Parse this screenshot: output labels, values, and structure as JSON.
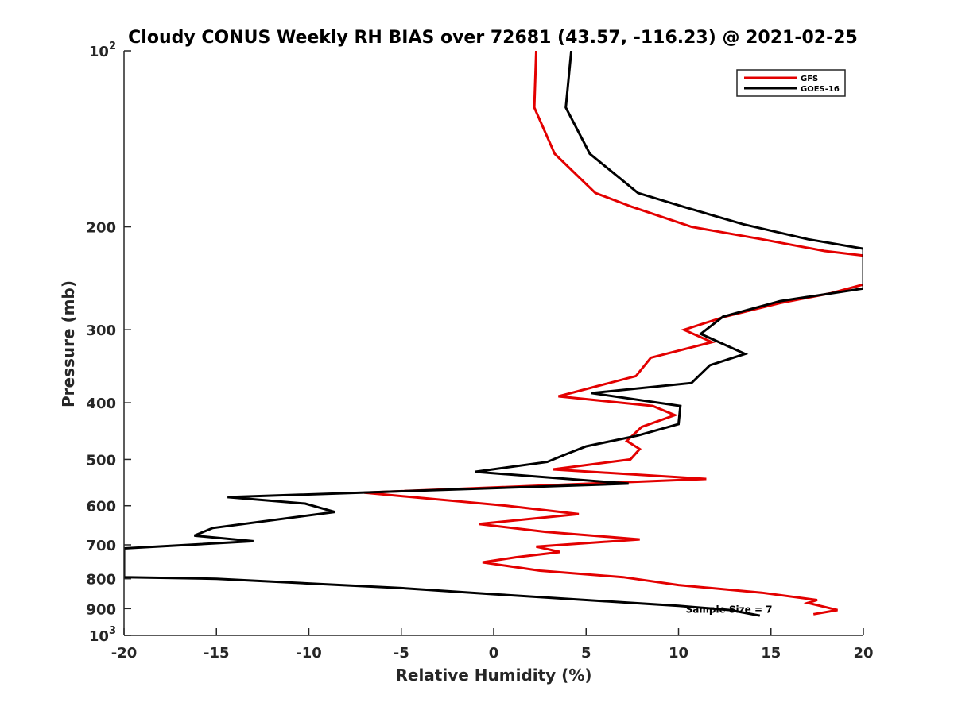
{
  "chart_data": {
    "type": "line",
    "title": "Cloudy CONUS Weekly RH BIAS over 72681 (43.57, -116.23) @ 2021-02-25",
    "xlabel": "Relative Humidity (%)",
    "ylabel": "Pressure (mb)",
    "xlim": [
      -20,
      20
    ],
    "ylim": [
      100,
      1000
    ],
    "y_scale": "log",
    "y_reversed": true,
    "grid": false,
    "legend_position": "top-right",
    "x_ticks": [
      -20,
      -15,
      -10,
      -5,
      0,
      5,
      10,
      15,
      20
    ],
    "x_tick_labels": [
      "-20",
      "-15",
      "-10",
      "-5",
      "0",
      "5",
      "10",
      "15",
      "20"
    ],
    "y_ticks": [
      100,
      200,
      300,
      400,
      500,
      600,
      700,
      800,
      900,
      1000
    ],
    "y_tick_labels": [
      {
        "base": "10",
        "exp": "2"
      },
      {
        "base": "200",
        "exp": ""
      },
      {
        "base": "300",
        "exp": ""
      },
      {
        "base": "400",
        "exp": ""
      },
      {
        "base": "500",
        "exp": ""
      },
      {
        "base": "600",
        "exp": ""
      },
      {
        "base": "700",
        "exp": ""
      },
      {
        "base": "800",
        "exp": ""
      },
      {
        "base": "900",
        "exp": ""
      },
      {
        "base": "10",
        "exp": "3"
      }
    ],
    "annotation": "Sample Size = 7",
    "annotation_at": {
      "x": 12.5,
      "y": 900
    },
    "series": [
      {
        "name": "GFS",
        "color": "#e30000",
        "points": [
          [
            2.3,
            100
          ],
          [
            2.2,
            125
          ],
          [
            3.3,
            150
          ],
          [
            5.5,
            175
          ],
          [
            7.5,
            185
          ],
          [
            10.7,
            200
          ],
          [
            14.5,
            210
          ],
          [
            17.9,
            220
          ],
          [
            20.0,
            224
          ],
          [
            20.0,
            251
          ],
          [
            18.2,
            260
          ],
          [
            15.5,
            270
          ],
          [
            12.5,
            285
          ],
          [
            10.3,
            300
          ],
          [
            11.8,
            315
          ],
          [
            8.5,
            335
          ],
          [
            7.7,
            360
          ],
          [
            3.5,
            390
          ],
          [
            8.6,
            405
          ],
          [
            9.8,
            420
          ],
          [
            8.0,
            440
          ],
          [
            7.2,
            465
          ],
          [
            7.9,
            480
          ],
          [
            7.4,
            500
          ],
          [
            3.2,
            520
          ],
          [
            11.5,
            540
          ],
          [
            -7.0,
            570
          ],
          [
            0.7,
            600
          ],
          [
            4.6,
            620
          ],
          [
            -0.8,
            645
          ],
          [
            2.8,
            665
          ],
          [
            7.9,
            685
          ],
          [
            2.3,
            705
          ],
          [
            3.6,
            720
          ],
          [
            1.2,
            735
          ],
          [
            -0.6,
            750
          ],
          [
            2.5,
            775
          ],
          [
            7.0,
            795
          ],
          [
            10.0,
            820
          ],
          [
            14.5,
            845
          ],
          [
            17.5,
            870
          ],
          [
            17.0,
            880
          ],
          [
            18.6,
            905
          ],
          [
            17.3,
            920
          ]
        ]
      },
      {
        "name": "GOES-16",
        "color": "#000000",
        "points": [
          [
            4.2,
            100
          ],
          [
            3.9,
            125
          ],
          [
            5.2,
            150
          ],
          [
            7.8,
            175
          ],
          [
            10.3,
            185
          ],
          [
            13.5,
            198
          ],
          [
            17.0,
            210
          ],
          [
            20.0,
            218
          ],
          [
            20.0,
            255
          ],
          [
            15.5,
            268
          ],
          [
            12.4,
            285
          ],
          [
            11.2,
            305
          ],
          [
            13.6,
            330
          ],
          [
            11.7,
            345
          ],
          [
            10.7,
            370
          ],
          [
            5.3,
            385
          ],
          [
            10.1,
            405
          ],
          [
            10.0,
            435
          ],
          [
            7.8,
            455
          ],
          [
            5.0,
            475
          ],
          [
            3.9,
            490
          ],
          [
            2.9,
            505
          ],
          [
            -1.0,
            525
          ],
          [
            7.3,
            550
          ],
          [
            -14.4,
            580
          ],
          [
            -10.2,
            595
          ],
          [
            -8.6,
            615
          ],
          [
            -15.2,
            655
          ],
          [
            -16.2,
            675
          ],
          [
            -13.0,
            690
          ],
          [
            -20.0,
            710
          ],
          [
            -20.0,
            795
          ],
          [
            -15.0,
            800
          ],
          [
            -10.0,
            815
          ],
          [
            -5.0,
            830
          ],
          [
            0.0,
            850
          ],
          [
            5.0,
            870
          ],
          [
            10.0,
            890
          ],
          [
            12.8,
            905
          ],
          [
            14.4,
            925
          ]
        ]
      }
    ]
  }
}
